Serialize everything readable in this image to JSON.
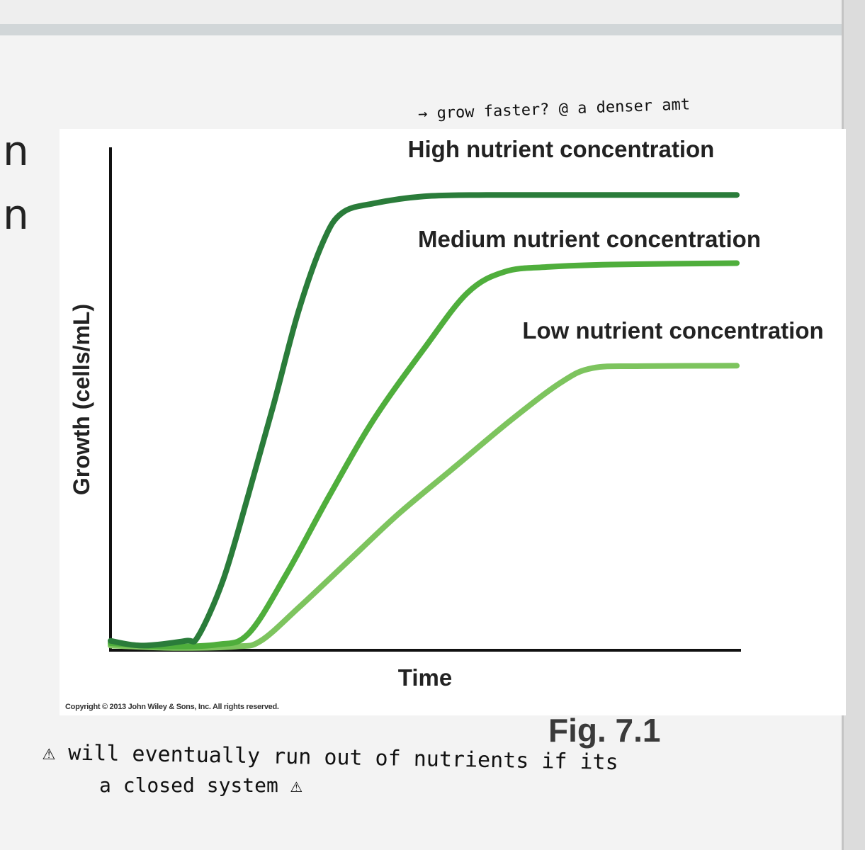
{
  "slide": {
    "left_letters": [
      "n",
      "n"
    ]
  },
  "annotations": {
    "top_note": "→ grow faster? @ a denser amt",
    "bottom_note_line1": "⚠ will eventually  run out of  nutrients if its",
    "bottom_note_line2": "a closed  system ⚠"
  },
  "figure": {
    "copyright": "Copyright © 2013 John Wiley & Sons, Inc. All rights reserved.",
    "fig_label": "Fig. 7.1"
  },
  "chart_data": {
    "type": "line",
    "xlabel": "Time",
    "ylabel": "Growth (cells/mL)",
    "ylim": [
      0,
      100
    ],
    "xlim": [
      0,
      100
    ],
    "grid": false,
    "legend": "inline labels above each curve",
    "series": [
      {
        "name": "High nutrient concentration",
        "color": "#2a7c3a",
        "points": [
          [
            0,
            2
          ],
          [
            5,
            1
          ],
          [
            12,
            2
          ],
          [
            14,
            3
          ],
          [
            18,
            15
          ],
          [
            22,
            33
          ],
          [
            26,
            52
          ],
          [
            30,
            72
          ],
          [
            34,
            87
          ],
          [
            37,
            93
          ],
          [
            42,
            95
          ],
          [
            50,
            96.5
          ],
          [
            60,
            96.8
          ],
          [
            75,
            96.8
          ],
          [
            100,
            96.8
          ]
        ]
      },
      {
        "name": "Medium nutrient concentration",
        "color": "#4fae3c",
        "points": [
          [
            0,
            1.5
          ],
          [
            8,
            0.8
          ],
          [
            17,
            1.2
          ],
          [
            22,
            3.5
          ],
          [
            28,
            16
          ],
          [
            35,
            33
          ],
          [
            42,
            49
          ],
          [
            50,
            64
          ],
          [
            57,
            76
          ],
          [
            63,
            80.5
          ],
          [
            70,
            81.5
          ],
          [
            80,
            82
          ],
          [
            100,
            82.3
          ]
        ]
      },
      {
        "name": "Low nutrient concentration",
        "color": "#7dc45e",
        "points": [
          [
            0,
            1
          ],
          [
            10,
            0.5
          ],
          [
            20,
            0.8
          ],
          [
            24,
            2
          ],
          [
            30,
            9
          ],
          [
            38,
            19
          ],
          [
            46,
            29
          ],
          [
            55,
            39
          ],
          [
            64,
            49
          ],
          [
            72,
            57
          ],
          [
            77,
            60
          ],
          [
            85,
            60.4
          ],
          [
            100,
            60.5
          ]
        ]
      }
    ]
  }
}
